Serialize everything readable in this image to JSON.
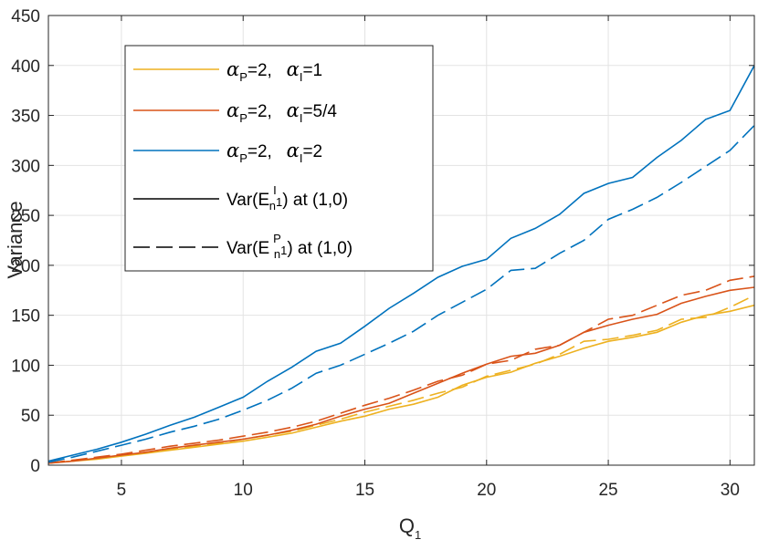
{
  "chart_data": {
    "type": "line",
    "title": "",
    "xlabel": "Q",
    "xlabel_sub": "1",
    "ylabel": "Variance",
    "xlim": [
      2,
      31
    ],
    "ylim": [
      0,
      450
    ],
    "xticks": [
      5,
      10,
      15,
      20,
      25,
      30
    ],
    "yticks": [
      0,
      50,
      100,
      150,
      200,
      250,
      300,
      350,
      400,
      450
    ],
    "grid": true,
    "legend_position": "top-left",
    "x": [
      2,
      3,
      4,
      5,
      6,
      7,
      8,
      9,
      10,
      11,
      12,
      13,
      14,
      15,
      16,
      17,
      18,
      19,
      20,
      21,
      22,
      23,
      24,
      25,
      26,
      27,
      28,
      29,
      30,
      31
    ],
    "series": [
      {
        "name": "αP=2, αI=1, Var(E_n1^I)",
        "group": 0,
        "style": "solid",
        "color": "#EDB120",
        "values": [
          2,
          4,
          6,
          9,
          12,
          15,
          18,
          21,
          24,
          28,
          32,
          38,
          44,
          49,
          56,
          61,
          68,
          80,
          88,
          93,
          102,
          109,
          117,
          124,
          128,
          133,
          143,
          150,
          154,
          160
        ]
      },
      {
        "name": "αP=2, αI=1, Var(E_n1^P)",
        "group": 0,
        "style": "dashed",
        "color": "#EDB120",
        "values": [
          2,
          5,
          7,
          10,
          13,
          16,
          19,
          22,
          26,
          30,
          34,
          40,
          46,
          53,
          59,
          65,
          72,
          78,
          89,
          95,
          101,
          111,
          124,
          126,
          130,
          135,
          146,
          148,
          158,
          170
        ]
      },
      {
        "name": "αP=2, αI=5/4, Var(E_n1^I)",
        "group": 1,
        "style": "solid",
        "color": "#D95319",
        "values": [
          2,
          4,
          7,
          10,
          13,
          17,
          20,
          23,
          26,
          30,
          35,
          41,
          49,
          56,
          62,
          72,
          82,
          92,
          101,
          109,
          112,
          120,
          133,
          140,
          146,
          151,
          162,
          169,
          175,
          178
        ]
      },
      {
        "name": "αP=2, αI=5/4, Var(E_n1^P)",
        "group": 1,
        "style": "dashed",
        "color": "#D95319",
        "values": [
          2,
          5,
          8,
          11,
          15,
          19,
          22,
          25,
          29,
          33,
          38,
          44,
          52,
          60,
          67,
          75,
          84,
          90,
          101,
          105,
          116,
          120,
          133,
          146,
          150,
          160,
          170,
          175,
          185,
          189
        ]
      },
      {
        "name": "αP=2, αI=2, Var(E_n1^I)",
        "group": 2,
        "style": "solid",
        "color": "#0072BD",
        "values": [
          4,
          10,
          16,
          23,
          31,
          40,
          48,
          58,
          68,
          84,
          98,
          114,
          122,
          139,
          157,
          172,
          188,
          199,
          206,
          227,
          237,
          251,
          272,
          282,
          288,
          308,
          325,
          346,
          355,
          400
        ]
      },
      {
        "name": "αP=2, αI=2, Var(E_n1^P)",
        "group": 2,
        "style": "dashed",
        "color": "#0072BD",
        "values": [
          3,
          8,
          14,
          20,
          26,
          33,
          39,
          46,
          55,
          65,
          77,
          92,
          100,
          111,
          122,
          134,
          150,
          163,
          176,
          195,
          197,
          212,
          225,
          246,
          256,
          268,
          283,
          299,
          315,
          340
        ]
      }
    ],
    "legend": [
      {
        "label": "=2,   ",
        "sub1": "P",
        "sub2": "I",
        "value": "=1",
        "color": "#EDB120",
        "style": "solid"
      },
      {
        "label": "=2,   ",
        "sub1": "P",
        "sub2": "I",
        "value": "=5/4",
        "color": "#D95319",
        "style": "solid"
      },
      {
        "label": "=2,   ",
        "sub1": "P",
        "sub2": "I",
        "value": "=2",
        "color": "#0072BD",
        "style": "solid"
      },
      {
        "prefix": "Var(E",
        "sub": "n",
        "sup": "I",
        "after": "1",
        "suffix": ") at (1,0)",
        "color": "#000000",
        "style": "solid"
      },
      {
        "prefix": "Var(E",
        "sub": "n",
        "sup": "P",
        "after": "1",
        "suffix": ") at (1,0)",
        "color": "#000000",
        "style": "dashed"
      }
    ]
  }
}
